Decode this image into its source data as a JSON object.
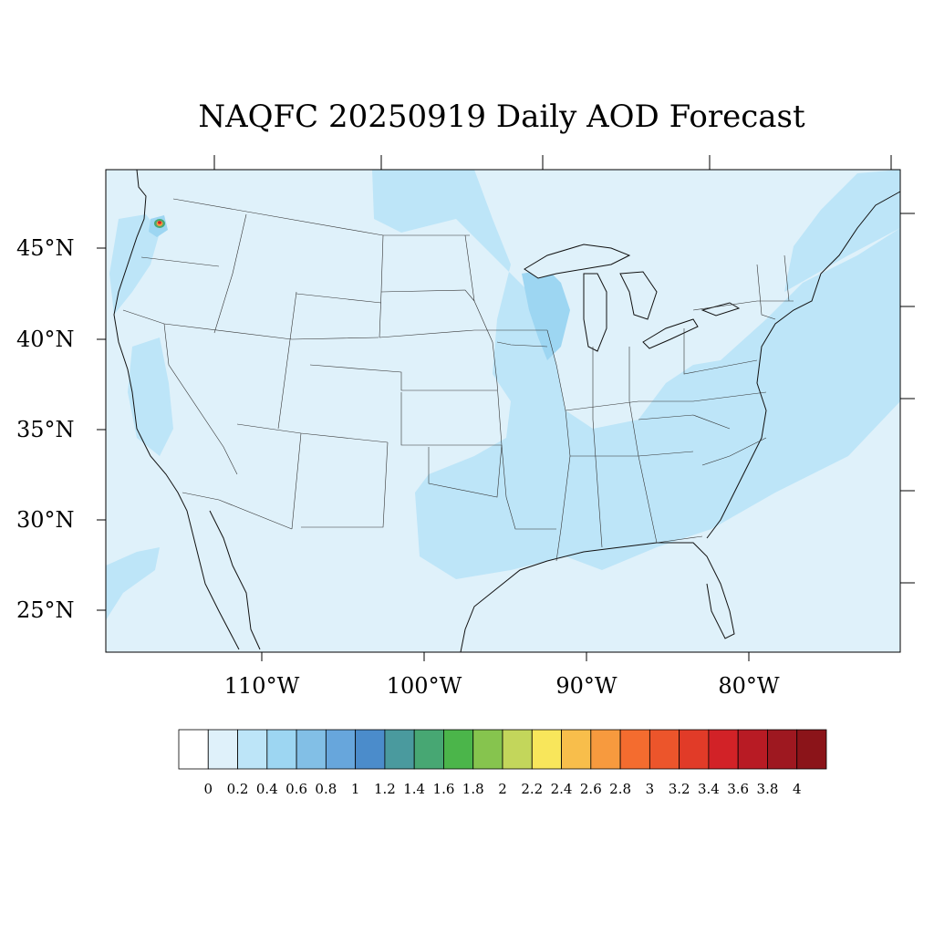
{
  "title": "NAQFC 20250919 Daily AOD Forecast",
  "latitude_labels": [
    "45°N",
    "40°N",
    "35°N",
    "30°N",
    "25°N"
  ],
  "longitude_labels": [
    "110°W",
    "100°W",
    "90°W",
    "80°W"
  ],
  "colorbar": {
    "labels": [
      "0",
      "0.2",
      "0.4",
      "0.6",
      "0.8",
      "1",
      "1.2",
      "1.4",
      "1.6",
      "1.8",
      "2",
      "2.2",
      "2.4",
      "2.6",
      "2.8",
      "3",
      "3.2",
      "3.4",
      "3.6",
      "3.8",
      "4"
    ],
    "colors": [
      "#ffffff",
      "#dff1fa",
      "#bde5f8",
      "#9dd6f2",
      "#82bfe6",
      "#67a6dc",
      "#4b8ccb",
      "#4a9a9e",
      "#47a773",
      "#4bb54a",
      "#86c44e",
      "#c3d65b",
      "#f8e65b",
      "#f8be4b",
      "#f79a3e",
      "#f46c2f",
      "#ec552b",
      "#e13b28",
      "#d22227",
      "#b81b24",
      "#9e1820",
      "#8b1419"
    ]
  },
  "colors": {
    "background_aod": "#dff1fa",
    "elevated_aod": "#bde5f8",
    "moderate_aod": "#9dd6f2",
    "border_line": "#333333",
    "coast_line": "#111111"
  }
}
